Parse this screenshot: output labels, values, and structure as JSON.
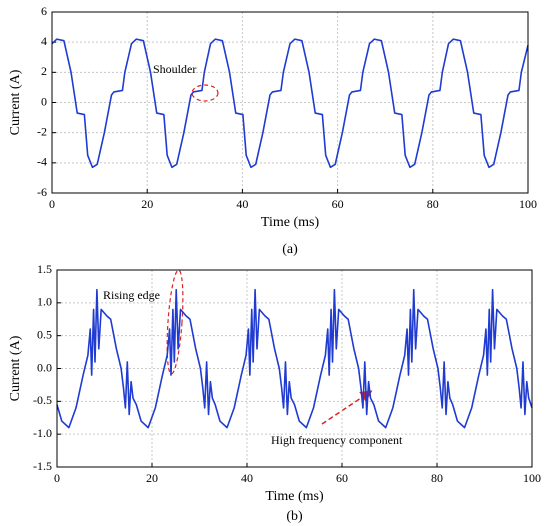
{
  "chart_data": [
    {
      "type": "line",
      "caption": "(a)",
      "xlabel": "Time (ms)",
      "ylabel": "Current (A)",
      "xlim": [
        0,
        100
      ],
      "ylim": [
        -6,
        6
      ],
      "xticks": [
        0,
        20,
        40,
        60,
        80,
        100
      ],
      "yticks": [
        -6,
        -4,
        -2,
        0,
        2,
        4,
        6
      ],
      "grid": true,
      "annotations": [
        "Shoulder"
      ],
      "x": [
        0,
        1,
        2.5,
        4,
        5.3,
        6.8,
        7.5,
        8.5,
        9.5,
        11,
        12.5,
        13,
        14.8,
        15.3,
        16.7,
        17.7,
        19.2,
        20.7,
        22,
        23.5,
        24.2,
        25.2,
        26.2,
        27.7,
        29.2,
        29.7,
        31.5,
        32,
        33.3,
        34.3,
        35.8,
        37.3,
        38.6,
        40.1,
        40.8,
        41.8,
        42.8,
        44.3,
        45.8,
        46.3,
        48.1,
        48.6,
        50,
        51,
        52.5,
        54,
        55.3,
        56.8,
        57.5,
        58.5,
        59.5,
        61,
        62.5,
        63,
        64.8,
        65.3,
        66.7,
        67.7,
        69.2,
        70.7,
        72,
        73.5,
        74.2,
        75.2,
        76.2,
        77.7,
        79.2,
        79.7,
        81.5,
        82,
        83.3,
        84.3,
        85.8,
        87.3,
        88.6,
        90.1,
        90.8,
        91.8,
        92.8,
        94.3,
        95.8,
        96.3,
        98.1,
        98.6,
        100
      ],
      "series": [
        {
          "color": "#1f3bd1",
          "values": [
            3.9,
            4.2,
            4.1,
            2.0,
            -0.7,
            -0.8,
            -3.5,
            -4.3,
            -4.1,
            -2.0,
            0.5,
            0.7,
            0.8,
            2.0,
            3.9,
            4.2,
            4.1,
            2.0,
            -0.7,
            -0.8,
            -3.5,
            -4.3,
            -4.1,
            -2.0,
            0.5,
            0.7,
            0.8,
            2.0,
            3.9,
            4.2,
            4.1,
            2.0,
            -0.7,
            -0.8,
            -3.5,
            -4.3,
            -4.1,
            -2.0,
            0.5,
            0.7,
            0.8,
            2.0,
            3.9,
            4.2,
            4.1,
            2.0,
            -0.7,
            -0.8,
            -3.5,
            -4.3,
            -4.1,
            -2.0,
            0.5,
            0.7,
            0.8,
            2.0,
            3.9,
            4.2,
            4.1,
            2.0,
            -0.7,
            -0.8,
            -3.5,
            -4.3,
            -4.1,
            -2.0,
            0.5,
            0.7,
            0.8,
            2.0,
            3.9,
            4.2,
            4.1,
            2.0,
            -0.7,
            -0.8,
            -3.5,
            -4.3,
            -4.1,
            -2.0,
            0.5,
            0.7,
            0.8,
            2.0,
            3.8
          ]
        }
      ]
    },
    {
      "type": "line",
      "caption": "(b)",
      "xlabel": "Time (ms)",
      "ylabel": "Current (A)",
      "xlim": [
        0,
        100
      ],
      "ylim": [
        -1.5,
        1.5
      ],
      "xticks": [
        0,
        20,
        40,
        60,
        80,
        100
      ],
      "yticks": [
        -1.5,
        {
          "value": -1,
          "label": "-1.0"
        },
        -0.5,
        {
          "value": 0,
          "label": "0.0"
        },
        0.5,
        {
          "value": 1,
          "label": "1.0"
        },
        1.5
      ],
      "grid": true,
      "annotations": [
        "Rising edge",
        "High frequency component"
      ],
      "x": [
        0,
        1,
        2.5,
        4,
        5.5,
        6.5,
        7,
        7.3,
        7.7,
        8,
        8.4,
        8.8,
        9.3,
        10.5,
        11.3,
        12.5,
        13.5,
        14,
        14.4,
        14.8,
        15.2,
        15.6,
        16,
        16.7,
        17.7,
        19.2,
        20.7,
        22.2,
        23.2,
        23.7,
        24,
        24.4,
        24.7,
        25.1,
        25.5,
        26,
        27.2,
        28,
        29.2,
        30.2,
        30.7,
        31.1,
        31.5,
        31.9,
        32.3,
        32.7,
        33.3,
        34.3,
        35.8,
        37.3,
        38.8,
        39.8,
        40.3,
        40.6,
        41,
        41.3,
        41.7,
        42.1,
        42.6,
        43.8,
        44.6,
        45.8,
        46.8,
        47.3,
        47.7,
        48.1,
        48.5,
        48.9,
        49.3,
        50,
        51,
        52.5,
        54,
        55.5,
        56.5,
        57,
        57.3,
        57.7,
        58,
        58.4,
        58.8,
        59.3,
        60.5,
        61.3,
        62.5,
        63.5,
        64,
        64.4,
        64.8,
        65.2,
        65.6,
        66,
        66.7,
        67.7,
        69.2,
        70.7,
        72.2,
        73.2,
        73.7,
        74,
        74.4,
        74.7,
        75.1,
        75.5,
        76,
        77.2,
        78,
        79.2,
        80.2,
        80.7,
        81.1,
        81.5,
        81.9,
        82.3,
        82.7,
        83.3,
        84.3,
        85.8,
        87.3,
        88.8,
        89.8,
        90.3,
        90.6,
        91,
        91.3,
        91.7,
        92.1,
        92.6,
        93.8,
        94.6,
        95.8,
        96.8,
        97.3,
        97.7,
        98.1,
        98.5,
        98.9,
        99.3,
        100
      ],
      "series": [
        {
          "color": "#1f3bd1",
          "values": [
            -0.55,
            -0.8,
            -0.9,
            -0.6,
            -0.1,
            0.2,
            0.6,
            -0.1,
            0.9,
            0.1,
            1.2,
            0.3,
            0.9,
            0.8,
            0.75,
            0.3,
            0,
            -0.3,
            -0.6,
            0.1,
            -0.7,
            -0.2,
            -0.45,
            -0.55,
            -0.8,
            -0.9,
            -0.6,
            -0.1,
            0.2,
            0.6,
            -0.1,
            0.9,
            0.1,
            1.2,
            0.3,
            0.9,
            0.8,
            0.75,
            0.3,
            0,
            -0.3,
            -0.6,
            0.1,
            -0.7,
            -0.2,
            -0.45,
            -0.55,
            -0.8,
            -0.9,
            -0.6,
            -0.1,
            0.2,
            0.6,
            -0.1,
            0.9,
            0.1,
            1.2,
            0.3,
            0.9,
            0.8,
            0.75,
            0.3,
            0,
            -0.3,
            -0.6,
            0.1,
            -0.7,
            -0.2,
            -0.45,
            -0.55,
            -0.8,
            -0.9,
            -0.6,
            -0.1,
            0.2,
            0.6,
            -0.1,
            0.9,
            0.1,
            1.2,
            0.3,
            0.9,
            0.8,
            0.75,
            0.3,
            0,
            -0.3,
            -0.6,
            0.1,
            -0.7,
            -0.2,
            -0.45,
            -0.55,
            -0.8,
            -0.9,
            -0.6,
            -0.1,
            0.2,
            0.6,
            -0.1,
            0.9,
            0.1,
            1.2,
            0.3,
            0.9,
            0.8,
            0.75,
            0.3,
            0,
            -0.3,
            -0.6,
            0.1,
            -0.7,
            -0.2,
            -0.45,
            -0.55,
            -0.8,
            -0.9,
            -0.6,
            -0.1,
            0.2,
            0.6,
            -0.1,
            0.9,
            0.1,
            1.2,
            0.3,
            0.9,
            0.8,
            0.75,
            0.3,
            0,
            -0.3,
            -0.6,
            0.1,
            -0.7,
            -0.2,
            -0.45,
            -0.6
          ]
        }
      ]
    }
  ]
}
